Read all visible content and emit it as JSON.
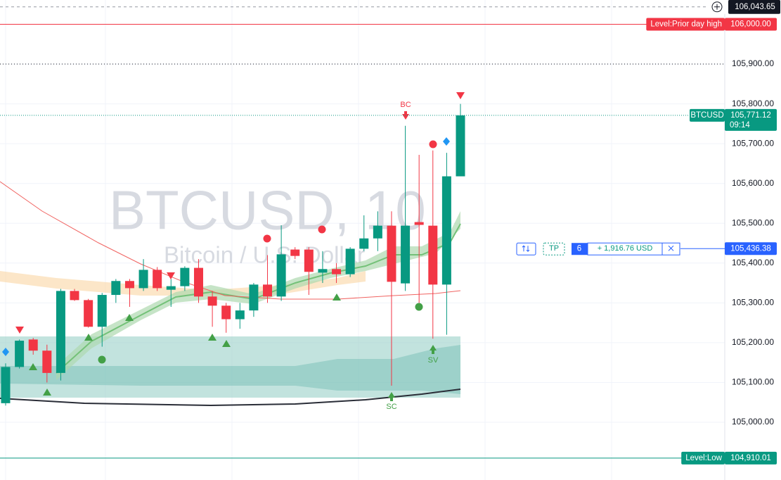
{
  "chart_data": {
    "type": "candlestick",
    "title": "BTCUSD, 10",
    "subtitle": "Bitcoin / U.S. Dollar",
    "up_color": "#089981",
    "down_color": "#f23645",
    "open": [
      105048,
      105139,
      105208,
      105180,
      105124,
      105330,
      105307,
      105240,
      105320,
      105355,
      105337,
      105383,
      105333,
      105342,
      105388,
      105316,
      105293,
      105259,
      105281,
      105346,
      105316,
      105434,
      105434,
      105376,
      105385,
      105372,
      105436,
      105462,
      105494,
      105349,
      105503,
      105494,
      105346,
      105618
    ],
    "high": [
      105148,
      105208,
      105212,
      105195,
      105335,
      105335,
      105310,
      105325,
      105360,
      105360,
      105410,
      105390,
      105360,
      105392,
      105410,
      105330,
      105300,
      105300,
      105350,
      105420,
      105495,
      105440,
      105440,
      105430,
      105400,
      105440,
      105520,
      105530,
      105530,
      105745,
      105672,
      105683,
      105677,
      105800
    ],
    "low": [
      105042,
      105135,
      105170,
      105100,
      105105,
      105305,
      105238,
      105190,
      105300,
      105290,
      105330,
      105330,
      105290,
      105330,
      105300,
      105240,
      105225,
      105235,
      105265,
      105300,
      105305,
      105410,
      105320,
      105350,
      105350,
      105365,
      105430,
      105430,
      105092,
      105330,
      105300,
      105210,
      105220,
      105618
    ],
    "close": [
      105139,
      105205,
      105180,
      105124,
      105330,
      105307,
      105240,
      105320,
      105355,
      105337,
      105383,
      105337,
      105342,
      105388,
      105316,
      105293,
      105259,
      105281,
      105346,
      105316,
      105422,
      105418,
      105378,
      105385,
      105372,
      105436,
      105462,
      105494,
      105353,
      105494,
      105496,
      105346,
      105618,
      105771
    ],
    "ylim": [
      104855,
      106061
    ],
    "yticks": [
      {
        "value": 105000,
        "label": "105,000.00"
      },
      {
        "value": 105100,
        "label": "105,100.00"
      },
      {
        "value": 105200,
        "label": "105,200.00"
      },
      {
        "value": 105300,
        "label": "105,300.00"
      },
      {
        "value": 105400,
        "label": "105,400.00"
      },
      {
        "value": 105500,
        "label": "105,500.00"
      },
      {
        "value": 105600,
        "label": "105,600.00"
      },
      {
        "value": 105700,
        "label": "105,700.00"
      },
      {
        "value": 105800,
        "label": "105,800.00"
      },
      {
        "value": 105900,
        "label": "105,900.00"
      }
    ],
    "grid": true,
    "levels": [
      {
        "name": "Level:Prior day high",
        "value": 106000,
        "label": "106,000.00",
        "color": "#f23645"
      },
      {
        "name": "Level:Low",
        "value": 104910.01,
        "label": "104,910.01",
        "color": "#089981"
      }
    ],
    "last_price": {
      "name": "BTCUSD",
      "value": 105771.12,
      "label": "105,771.12",
      "countdown": "09:14",
      "color": "#089981"
    },
    "crosshair": {
      "value": 106043.65,
      "label": "106,043.65"
    },
    "position": {
      "value": 105436.38,
      "label": "105,436.38",
      "side": "TP",
      "quantity": 6,
      "pnl": "+ 1,916.76 USD",
      "color": "#2962ff"
    },
    "annotations": [
      "BC",
      "SC",
      "SV"
    ]
  }
}
